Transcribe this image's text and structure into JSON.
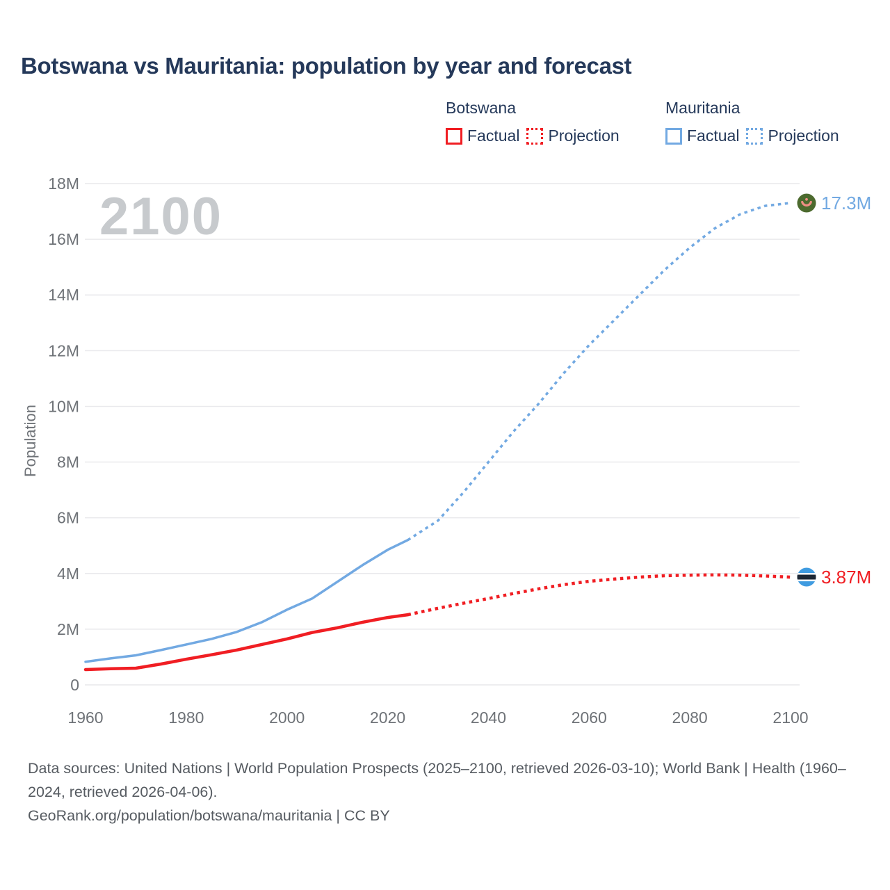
{
  "title": "Botswana vs Mauritania: population by year and forecast",
  "watermark": "2100",
  "y_axis_title": "Population",
  "colors": {
    "botswana": "#f01e23",
    "mauritania": "#72a9e2",
    "title_text": "#25395a",
    "axis_text": "#6e7277",
    "watermark": "#c7cacd",
    "gridline": "#e9e9ec",
    "footer_text": "#565b61",
    "mauritania_flag_green": "#4c6a2e",
    "mauritania_flag_crescent": "#ef8f85",
    "botswana_flag_blue": "#3f9be0"
  },
  "legend": {
    "groups": [
      {
        "name": "Botswana",
        "color": "#f01e23",
        "items": [
          {
            "label": "Factual",
            "style": "solid"
          },
          {
            "label": "Projection",
            "style": "dotted"
          }
        ]
      },
      {
        "name": "Mauritania",
        "color": "#72a9e2",
        "items": [
          {
            "label": "Factual",
            "style": "solid"
          },
          {
            "label": "Projection",
            "style": "dotted"
          }
        ]
      }
    ]
  },
  "footer": {
    "sources": "Data sources: United Nations | World Population Prospects (2025–2100, retrieved 2026-03-10); World Bank | Health (1960–2024, retrieved 2026-04-06).",
    "attribution": "GeoRank.org/population/botswana/mauritania | CC BY"
  },
  "chart_data": {
    "type": "line",
    "title": "Botswana vs Mauritania: population by year and forecast",
    "xlabel": "",
    "ylabel": "Population",
    "xlim": [
      1960,
      2100
    ],
    "ylim_millions": [
      0,
      18
    ],
    "x_ticks": [
      1960,
      1980,
      2000,
      2020,
      2040,
      2060,
      2080,
      2100
    ],
    "y_tick_labels": [
      "0",
      "2M",
      "4M",
      "6M",
      "8M",
      "10M",
      "12M",
      "14M",
      "16M",
      "18M"
    ],
    "grid": "horizontal",
    "legend_position": "top-right",
    "series": [
      {
        "name": "Botswana Factual",
        "country": "Botswana",
        "color": "#f01e23",
        "style": "solid",
        "x": [
          1960,
          1965,
          1970,
          1975,
          1980,
          1985,
          1990,
          1995,
          2000,
          2005,
          2010,
          2015,
          2020,
          2024
        ],
        "y_millions": [
          0.55,
          0.58,
          0.6,
          0.75,
          0.92,
          1.08,
          1.25,
          1.45,
          1.65,
          1.88,
          2.05,
          2.25,
          2.42,
          2.52
        ]
      },
      {
        "name": "Botswana Projection",
        "country": "Botswana",
        "color": "#f01e23",
        "style": "dotted",
        "x": [
          2024,
          2030,
          2035,
          2040,
          2045,
          2050,
          2055,
          2060,
          2065,
          2070,
          2075,
          2080,
          2085,
          2090,
          2095,
          2100
        ],
        "y_millions": [
          2.52,
          2.75,
          2.93,
          3.1,
          3.28,
          3.45,
          3.6,
          3.72,
          3.8,
          3.87,
          3.92,
          3.94,
          3.95,
          3.94,
          3.91,
          3.87
        ]
      },
      {
        "name": "Mauritania Factual",
        "country": "Mauritania",
        "color": "#72a9e2",
        "style": "solid",
        "x": [
          1960,
          1965,
          1970,
          1975,
          1980,
          1985,
          1990,
          1995,
          2000,
          2005,
          2010,
          2015,
          2020,
          2024
        ],
        "y_millions": [
          0.83,
          0.95,
          1.06,
          1.25,
          1.45,
          1.65,
          1.9,
          2.25,
          2.7,
          3.1,
          3.7,
          4.3,
          4.85,
          5.2
        ]
      },
      {
        "name": "Mauritania Projection",
        "country": "Mauritania",
        "color": "#72a9e2",
        "style": "dotted",
        "x": [
          2024,
          2030,
          2035,
          2040,
          2045,
          2050,
          2055,
          2060,
          2065,
          2070,
          2075,
          2080,
          2085,
          2090,
          2095,
          2100
        ],
        "y_millions": [
          5.2,
          5.9,
          6.9,
          8.0,
          9.1,
          10.1,
          11.2,
          12.2,
          13.1,
          14.0,
          14.9,
          15.7,
          16.4,
          16.9,
          17.2,
          17.3
        ]
      }
    ],
    "end_markers": [
      {
        "country": "Mauritania",
        "year": 2100,
        "value_millions": 17.3,
        "label": "17.3M",
        "flag": "mauritania",
        "label_color": "#72a9e2"
      },
      {
        "country": "Botswana",
        "year": 2100,
        "value_millions": 3.87,
        "label": "3.87M",
        "flag": "botswana",
        "label_color": "#f01e23"
      }
    ]
  }
}
